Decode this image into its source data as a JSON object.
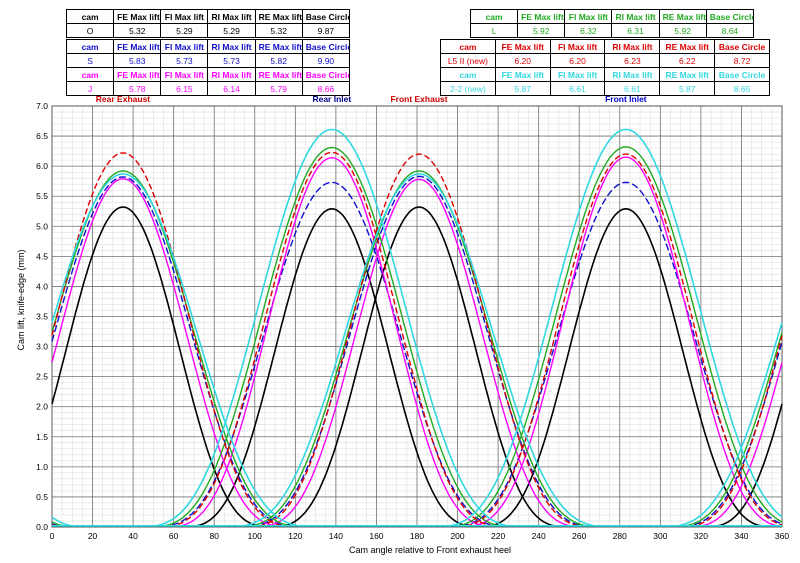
{
  "chart_data": {
    "type": "line",
    "xlabel": "Cam angle relative to Front exhaust heel",
    "ylabel": "Cam lift, knife-edge (mm)",
    "xlim": [
      0,
      360
    ],
    "ylim": [
      0,
      7.0
    ],
    "x_ticks": [
      "0",
      "20",
      "40",
      "60",
      "80",
      "100",
      "120",
      "140",
      "160",
      "180",
      "200",
      "220",
      "240",
      "260",
      "280",
      "300",
      "320",
      "340",
      "360"
    ],
    "y_ticks": [
      "0.0",
      "0.5",
      "1.0",
      "1.5",
      "2.0",
      "2.5",
      "3.0",
      "3.5",
      "4.0",
      "4.5",
      "5.0",
      "5.5",
      "6.0",
      "6.5",
      "7.0"
    ],
    "grid": true,
    "lobe_labels": [
      {
        "text": "Rear Exhaust",
        "color": "#cc0000",
        "x": 35
      },
      {
        "text": "Rear Inlet",
        "color": "#00008b",
        "x": 138
      },
      {
        "text": "Front Exhaust",
        "color": "#cc0000",
        "x": 181
      },
      {
        "text": "Front Inlet",
        "color": "#0000cc",
        "x": 283
      }
    ],
    "lobe_centers": {
      "RE": 35,
      "RI": 138,
      "FE": 181,
      "FI": 283
    },
    "series": [
      {
        "name": "O",
        "color": "#000000",
        "dash": "",
        "width": 1.6,
        "base_circle": 9.87,
        "lift": {
          "FE": 5.32,
          "FI": 5.29,
          "RI": 5.29,
          "RE": 5.32
        },
        "half_width": 34
      },
      {
        "name": "S",
        "color": "#1010cc",
        "dash": "7,3",
        "width": 1.4,
        "base_circle": 9.9,
        "lift": {
          "FE": 5.83,
          "FI": 5.73,
          "RI": 5.73,
          "RE": 5.82
        },
        "half_width": 41
      },
      {
        "name": "J",
        "color": "#ff00ff",
        "dash": "",
        "width": 1.4,
        "base_circle": 8.66,
        "lift": {
          "FE": 5.78,
          "FI": 6.15,
          "RI": 6.14,
          "RE": 5.79
        },
        "half_width": 38
      },
      {
        "name": "L",
        "color": "#22aa22",
        "dash": "",
        "width": 1.4,
        "base_circle": 8.64,
        "lift": {
          "FE": 5.92,
          "FI": 6.32,
          "RI": 6.31,
          "RE": 5.92
        },
        "half_width": 42
      },
      {
        "name": "L5 II (new)",
        "color": "#dd0000",
        "dash": "6,3",
        "width": 1.4,
        "base_circle": 8.72,
        "lift": {
          "FE": 6.2,
          "FI": 6.2,
          "RI": 6.23,
          "RE": 6.22
        },
        "half_width": 40
      },
      {
        "name": "2-2 (new)",
        "color": "#30d8e0",
        "dash": "",
        "width": 1.6,
        "base_circle": 8.65,
        "lift": {
          "FE": 5.87,
          "FI": 6.61,
          "RI": 6.61,
          "RE": 5.87
        },
        "half_width": 44
      }
    ]
  },
  "tables": [
    {
      "color": "#000000",
      "headers": [
        "cam",
        "FE Max lift",
        "FI Max lift",
        "RI Max lift",
        "RE Max lift",
        "Base Circle"
      ],
      "rows": [
        [
          "O",
          "5.32",
          "5.29",
          "5.29",
          "5.32",
          "9.87"
        ]
      ]
    },
    {
      "color": "#1010cc",
      "headers": [
        "cam",
        "FE Max lift",
        "FI Max lift",
        "RI Max lift",
        "RE Max lift",
        "Base Circle"
      ],
      "rows": [
        [
          "S",
          "5.83",
          "5.73",
          "5.73",
          "5.82",
          "9.90"
        ]
      ]
    },
    {
      "color": "#ff00ff",
      "headers": [
        "cam",
        "FE Max lift",
        "FI Max lift",
        "RI Max lift",
        "RE Max lift",
        "Base Circle"
      ],
      "rows": [
        [
          "J",
          "5.78",
          "6.15",
          "6.14",
          "5.79",
          "8.66"
        ]
      ]
    },
    {
      "color": "#22aa22",
      "headers": [
        "cam",
        "FE Max lift",
        "FI Max lift",
        "RI Max lift",
        "RE Max lift",
        "Base Circle"
      ],
      "rows": [
        [
          "L",
          "5.92",
          "6.32",
          "6.31",
          "5.92",
          "8.64"
        ]
      ]
    },
    {
      "color": "#dd0000",
      "headers": [
        "cam",
        "FE Max lift",
        "FI Max lift",
        "RI Max lift",
        "RE Max lift",
        "Base Circle"
      ],
      "rows": [
        [
          "L5 II (new)",
          "6.20",
          "6.20",
          "6.23",
          "6.22",
          "8.72"
        ]
      ]
    },
    {
      "color": "#30d8e0",
      "headers": [
        "cam",
        "FE Max lift",
        "FI Max lift",
        "RI Max lift",
        "RE Max lift",
        "Base Circle"
      ],
      "rows": [
        [
          "2-2 (new)",
          "5.87",
          "6.61",
          "6.61",
          "5.87",
          "8.65"
        ]
      ]
    }
  ]
}
